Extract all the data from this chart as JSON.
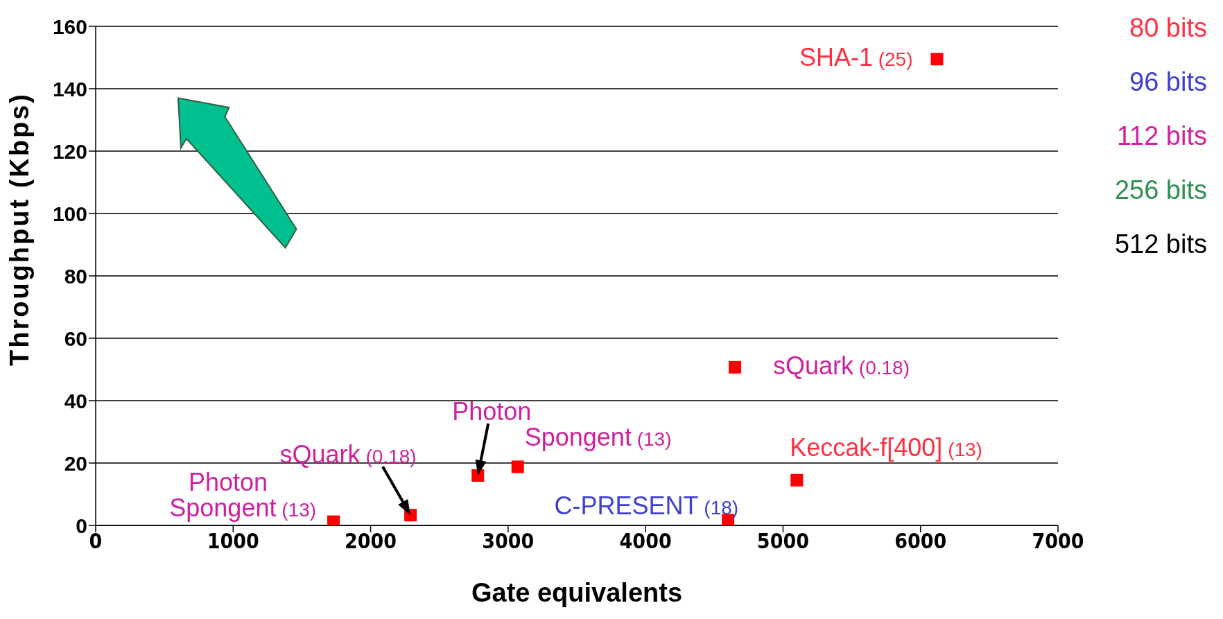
{
  "chart_data": {
    "type": "scatter",
    "xlabel": "Gate equivalents",
    "ylabel": "Throughput (Kbps)",
    "x": [
      1730,
      2290,
      2780,
      3070,
      4600,
      4650,
      5100,
      6120
    ],
    "values": [
      1.2,
      3.3,
      16,
      18.8,
      1.7,
      50.7,
      14.5,
      149.5
    ],
    "color": "#ff0000",
    "marker": "square",
    "xlim": [
      0,
      7000
    ],
    "xticks": [
      0,
      1000,
      2000,
      3000,
      4000,
      5000,
      6000,
      7000
    ],
    "ylim": [
      0,
      160
    ],
    "yticks": [
      0,
      20,
      40,
      60,
      80,
      100,
      120,
      140,
      160
    ],
    "grid": "y",
    "annotations": [
      {
        "text": "Spongent (13)",
        "x": 1730,
        "y": 1.2
      },
      {
        "text": "Photon",
        "x": 1730,
        "y": 1.2
      },
      {
        "text": "Spongent (13)",
        "x": 3070,
        "y": 18.8
      },
      {
        "text": "C-PRESENT (18)",
        "x": 4600,
        "y": 1.7
      },
      {
        "text": "sQuark (0.18)",
        "x": 4650,
        "y": 50.7
      },
      {
        "text": "Keccak-f[400] (13)",
        "x": 5100,
        "y": 14.5
      },
      {
        "text": "SHA-1 (25)",
        "x": 6120,
        "y": 149.5
      },
      {
        "text": "sQuark (0.18)",
        "x": 2290,
        "y": 3.3
      },
      {
        "text": "Photon",
        "x": 2780,
        "y": 16
      },
      "80 bits",
      "96 bits",
      "112 bits",
      "256 bits",
      "512 bits"
    ]
  }
}
